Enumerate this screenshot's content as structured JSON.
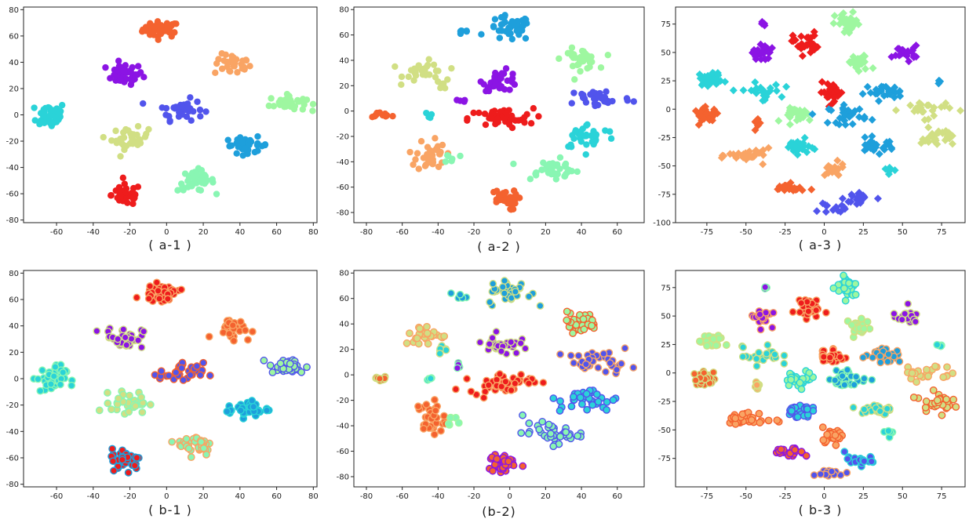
{
  "chart_data": [
    {
      "id": "a-1",
      "caption": "( a-1 )",
      "type": "scatter",
      "xlim": [
        -78,
        82
      ],
      "ylim": [
        -82,
        82
      ],
      "xticks": [
        -60,
        -40,
        -20,
        0,
        20,
        40,
        60,
        80
      ],
      "yticks": [
        -80,
        -60,
        -40,
        -20,
        0,
        20,
        40,
        60,
        80
      ],
      "marker": "circle",
      "style": "solid",
      "clusters": [
        {
          "x": -3,
          "y": 65,
          "sx": 5,
          "sy": 3,
          "color": "#f4622f",
          "n": 45
        },
        {
          "x": -23,
          "y": 31,
          "sx": 5,
          "sy": 4,
          "color": "#8b14e4",
          "n": 40
        },
        {
          "x": 36,
          "y": 38,
          "sx": 5,
          "sy": 4,
          "color": "#f9a464",
          "n": 30
        },
        {
          "x": -63,
          "y": 0,
          "sx": 4,
          "sy": 5,
          "color": "#2ad3d8",
          "n": 45
        },
        {
          "x": 8,
          "y": 4,
          "sx": 6,
          "sy": 4,
          "color": "#5154ec",
          "n": 35
        },
        {
          "x": 66,
          "y": 9,
          "sx": 5,
          "sy": 3,
          "color": "#9ef7a0",
          "n": 40
        },
        {
          "x": -20,
          "y": -18,
          "sx": 5,
          "sy": 4,
          "color": "#d1df84",
          "n": 35
        },
        {
          "x": 44,
          "y": -23,
          "sx": 6,
          "sy": 3,
          "color": "#1e9fdb",
          "n": 35
        },
        {
          "x": 16,
          "y": -50,
          "sx": 5,
          "sy": 4,
          "color": "#89f6b3",
          "n": 40
        },
        {
          "x": -22,
          "y": -61,
          "sx": 4,
          "sy": 4,
          "color": "#ee1c1c",
          "n": 45
        }
      ]
    },
    {
      "id": "a-2",
      "caption": "( a-2 )",
      "type": "scatter",
      "xlim": [
        -87,
        75
      ],
      "ylim": [
        -88,
        82
      ],
      "xticks": [
        -80,
        -60,
        -40,
        -20,
        0,
        20,
        40,
        60
      ],
      "yticks": [
        -80,
        -60,
        -40,
        -20,
        0,
        20,
        40,
        60,
        80
      ],
      "marker": "circle",
      "style": "solid",
      "clusters": [
        {
          "x": 0,
          "y": 65,
          "sx": 6,
          "sy": 5,
          "color": "#1e9fdb",
          "n": 40
        },
        {
          "x": -26,
          "y": 62,
          "sx": 2,
          "sy": 1,
          "color": "#1e9fdb",
          "n": 6
        },
        {
          "x": -47,
          "y": 31,
          "sx": 6,
          "sy": 4,
          "color": "#d1df84",
          "n": 30
        },
        {
          "x": -37,
          "y": 21,
          "sx": 2,
          "sy": 2,
          "color": "#d1df84",
          "n": 6
        },
        {
          "x": -5,
          "y": 24,
          "sx": 5,
          "sy": 4,
          "color": "#8b14e4",
          "n": 35
        },
        {
          "x": -28,
          "y": 8,
          "sx": 2,
          "sy": 1,
          "color": "#8b14e4",
          "n": 4
        },
        {
          "x": 39,
          "y": 41,
          "sx": 5,
          "sy": 4,
          "color": "#9ef7a0",
          "n": 35
        },
        {
          "x": -72,
          "y": -3,
          "sx": 4,
          "sy": 1,
          "color": "#f4622f",
          "n": 12
        },
        {
          "x": -45,
          "y": -3,
          "sx": 1,
          "sy": 1,
          "color": "#2ad3d8",
          "n": 4
        },
        {
          "x": -5,
          "y": -6,
          "sx": 9,
          "sy": 4,
          "color": "#ee1c1c",
          "n": 45
        },
        {
          "x": 50,
          "y": 10,
          "sx": 9,
          "sy": 4,
          "color": "#5154ec",
          "n": 35
        },
        {
          "x": 44,
          "y": -20,
          "sx": 8,
          "sy": 5,
          "color": "#2ad3d8",
          "n": 35
        },
        {
          "x": -44,
          "y": -34,
          "sx": 4,
          "sy": 7,
          "color": "#f9a464",
          "n": 35
        },
        {
          "x": -32,
          "y": -37,
          "sx": 2,
          "sy": 2,
          "color": "#89f6b3",
          "n": 6
        },
        {
          "x": 23,
          "y": -46,
          "sx": 8,
          "sy": 4,
          "color": "#89f6b3",
          "n": 40
        },
        {
          "x": -4,
          "y": -70,
          "sx": 4,
          "sy": 4,
          "color": "#f4622f",
          "n": 30
        }
      ]
    },
    {
      "id": "a-3",
      "caption": "( a-3 )",
      "type": "scatter",
      "xlim": [
        -95,
        90
      ],
      "ylim": [
        -100,
        90
      ],
      "xticks": [
        -75,
        -50,
        -25,
        0,
        25,
        50,
        75
      ],
      "yticks": [
        -100,
        -75,
        -50,
        -25,
        0,
        25,
        50,
        75
      ],
      "marker": "diamond",
      "style": "solid",
      "clusters": [
        {
          "x": -38,
          "y": 75,
          "sx": 1,
          "sy": 1,
          "color": "#8b14e4",
          "n": 4
        },
        {
          "x": -40,
          "y": 50,
          "sx": 3,
          "sy": 4,
          "color": "#8b14e4",
          "n": 25
        },
        {
          "x": -12,
          "y": 58,
          "sx": 4,
          "sy": 5,
          "color": "#ee1c1c",
          "n": 30
        },
        {
          "x": 15,
          "y": 75,
          "sx": 4,
          "sy": 5,
          "color": "#9ef7a0",
          "n": 30
        },
        {
          "x": 22,
          "y": 40,
          "sx": 4,
          "sy": 4,
          "color": "#9ef7a0",
          "n": 25
        },
        {
          "x": 52,
          "y": 50,
          "sx": 4,
          "sy": 3,
          "color": "#8b14e4",
          "n": 25
        },
        {
          "x": -72,
          "y": 27,
          "sx": 4,
          "sy": 3,
          "color": "#2ad3d8",
          "n": 30
        },
        {
          "x": -40,
          "y": 15,
          "sx": 6,
          "sy": 4,
          "color": "#2ad3d8",
          "n": 25
        },
        {
          "x": 5,
          "y": 15,
          "sx": 4,
          "sy": 4,
          "color": "#ee1c1c",
          "n": 30
        },
        {
          "x": 38,
          "y": 15,
          "sx": 6,
          "sy": 3,
          "color": "#1e9fdb",
          "n": 30
        },
        {
          "x": 74,
          "y": 24,
          "sx": 1,
          "sy": 1,
          "color": "#1e9fdb",
          "n": 4
        },
        {
          "x": -15,
          "y": -5,
          "sx": 5,
          "sy": 3,
          "color": "#9ef7a0",
          "n": 30
        },
        {
          "x": 15,
          "y": -5,
          "sx": 6,
          "sy": 4,
          "color": "#1e9fdb",
          "n": 30
        },
        {
          "x": -75,
          "y": -5,
          "sx": 4,
          "sy": 3,
          "color": "#f4622f",
          "n": 30
        },
        {
          "x": -43,
          "y": -12,
          "sx": 1,
          "sy": 3,
          "color": "#f4622f",
          "n": 10
        },
        {
          "x": 65,
          "y": 0,
          "sx": 8,
          "sy": 4,
          "color": "#d1df84",
          "n": 25
        },
        {
          "x": 72,
          "y": -25,
          "sx": 5,
          "sy": 4,
          "color": "#d1df84",
          "n": 30
        },
        {
          "x": -17,
          "y": -33,
          "sx": 4,
          "sy": 3,
          "color": "#2ad3d8",
          "n": 30
        },
        {
          "x": 33,
          "y": -32,
          "sx": 6,
          "sy": 3,
          "color": "#1e9fdb",
          "n": 30
        },
        {
          "x": -47,
          "y": -41,
          "sx": 7,
          "sy": 3,
          "color": "#f9a464",
          "n": 30
        },
        {
          "x": 5,
          "y": -54,
          "sx": 4,
          "sy": 3,
          "color": "#f9a464",
          "n": 25
        },
        {
          "x": 42,
          "y": -53,
          "sx": 2,
          "sy": 2,
          "color": "#2ad3d8",
          "n": 6
        },
        {
          "x": -23,
          "y": -70,
          "sx": 5,
          "sy": 2,
          "color": "#f4622f",
          "n": 20
        },
        {
          "x": 23,
          "y": -78,
          "sx": 5,
          "sy": 4,
          "color": "#5154ec",
          "n": 20
        },
        {
          "x": 5,
          "y": -88,
          "sx": 4,
          "sy": 2,
          "color": "#5154ec",
          "n": 12
        }
      ]
    },
    {
      "id": "b-1",
      "caption": "( b-1 )",
      "type": "scatter",
      "xlim": [
        -78,
        82
      ],
      "ylim": [
        -82,
        82
      ],
      "xticks": [
        -60,
        -40,
        -20,
        0,
        20,
        40,
        60,
        80
      ],
      "yticks": [
        -80,
        -60,
        -40,
        -20,
        0,
        20,
        40,
        60,
        80
      ],
      "marker": "circle",
      "style": "ring-overlay",
      "clusters": [
        {
          "x": -3,
          "y": 65,
          "sx": 5,
          "sy": 3,
          "color": "#ee1c1c",
          "ring": "#f9a464",
          "n": 45
        },
        {
          "x": -23,
          "y": 31,
          "sx": 5,
          "sy": 4,
          "color": "#8b14e4",
          "ring": "#d1df84",
          "n": 40
        },
        {
          "x": 36,
          "y": 38,
          "sx": 5,
          "sy": 4,
          "color": "#f4622f",
          "ring": "#f9a464",
          "n": 30
        },
        {
          "x": -63,
          "y": 0,
          "sx": 4,
          "sy": 5,
          "color": "#2ad3d8",
          "ring": "#89f6b3",
          "n": 45
        },
        {
          "x": 8,
          "y": 4,
          "sx": 6,
          "sy": 4,
          "color": "#5154ec",
          "ring": "#f4622f",
          "n": 35
        },
        {
          "x": 66,
          "y": 9,
          "sx": 5,
          "sy": 3,
          "color": "#9ef7a0",
          "ring": "#5154ec",
          "n": 40
        },
        {
          "x": -20,
          "y": -18,
          "sx": 5,
          "sy": 4,
          "color": "#d1df84",
          "ring": "#89f6b3",
          "n": 35
        },
        {
          "x": 44,
          "y": -23,
          "sx": 6,
          "sy": 3,
          "color": "#1e9fdb",
          "ring": "#2ad3d8",
          "n": 35
        },
        {
          "x": 16,
          "y": -50,
          "sx": 5,
          "sy": 4,
          "color": "#89f6b3",
          "ring": "#f9a464",
          "n": 40
        },
        {
          "x": -22,
          "y": -61,
          "sx": 4,
          "sy": 4,
          "color": "#ee1c1c",
          "ring": "#1e9fdb",
          "n": 45
        }
      ]
    },
    {
      "id": "b-2",
      "caption": "(b-2)",
      "type": "scatter",
      "xlim": [
        -87,
        75
      ],
      "ylim": [
        -88,
        82
      ],
      "xticks": [
        -80,
        -60,
        -40,
        -20,
        0,
        20,
        40,
        60
      ],
      "yticks": [
        -80,
        -60,
        -40,
        -20,
        0,
        20,
        40,
        60,
        80
      ],
      "marker": "circle",
      "style": "ring-overlay",
      "clusters": [
        {
          "x": 0,
          "y": 65,
          "sx": 6,
          "sy": 5,
          "color": "#1e9fdb",
          "ring": "#d1df84",
          "n": 40
        },
        {
          "x": -26,
          "y": 62,
          "sx": 2,
          "sy": 1,
          "color": "#1e9fdb",
          "ring": "#89f6b3",
          "n": 6
        },
        {
          "x": -47,
          "y": 31,
          "sx": 6,
          "sy": 4,
          "color": "#d1df84",
          "ring": "#f9a464",
          "n": 30
        },
        {
          "x": -37,
          "y": 21,
          "sx": 2,
          "sy": 2,
          "color": "#2ad3d8",
          "ring": "#d1df84",
          "n": 6
        },
        {
          "x": -5,
          "y": 24,
          "sx": 5,
          "sy": 4,
          "color": "#8b14e4",
          "ring": "#d1df84",
          "n": 35
        },
        {
          "x": -28,
          "y": 8,
          "sx": 2,
          "sy": 1,
          "color": "#8b14e4",
          "ring": "#89f6b3",
          "n": 4
        },
        {
          "x": 39,
          "y": 41,
          "sx": 5,
          "sy": 4,
          "color": "#9ef7a0",
          "ring": "#f4622f",
          "n": 35
        },
        {
          "x": -72,
          "y": -3,
          "sx": 4,
          "sy": 1,
          "color": "#f4622f",
          "ring": "#d1df84",
          "n": 12
        },
        {
          "x": -45,
          "y": -3,
          "sx": 1,
          "sy": 1,
          "color": "#2ad3d8",
          "ring": "#89f6b3",
          "n": 4
        },
        {
          "x": -5,
          "y": -6,
          "sx": 9,
          "sy": 4,
          "color": "#ee1c1c",
          "ring": "#f9a464",
          "n": 45
        },
        {
          "x": 50,
          "y": 10,
          "sx": 9,
          "sy": 4,
          "color": "#5154ec",
          "ring": "#f9a464",
          "n": 35
        },
        {
          "x": 44,
          "y": -20,
          "sx": 8,
          "sy": 5,
          "color": "#2ad3d8",
          "ring": "#5154ec",
          "n": 35
        },
        {
          "x": -44,
          "y": -34,
          "sx": 4,
          "sy": 7,
          "color": "#f4622f",
          "ring": "#f9a464",
          "n": 35
        },
        {
          "x": -32,
          "y": -37,
          "sx": 2,
          "sy": 2,
          "color": "#89f6b3",
          "ring": "#9ef7a0",
          "n": 6
        },
        {
          "x": 23,
          "y": -46,
          "sx": 8,
          "sy": 4,
          "color": "#89f6b3",
          "ring": "#5154ec",
          "n": 40
        },
        {
          "x": -4,
          "y": -70,
          "sx": 4,
          "sy": 4,
          "color": "#f4622f",
          "ring": "#8b14e4",
          "n": 30
        }
      ]
    },
    {
      "id": "b-3",
      "caption": "( b-3 )",
      "type": "scatter",
      "xlim": [
        -95,
        90
      ],
      "ylim": [
        -100,
        90
      ],
      "xticks": [
        -75,
        -50,
        -25,
        0,
        25,
        50,
        75
      ],
      "yticks": [
        -75,
        -50,
        -25,
        0,
        25,
        50,
        75
      ],
      "marker": "circle",
      "style": "ring-overlay",
      "clusters": [
        {
          "x": -38,
          "y": 75,
          "sx": 1,
          "sy": 1,
          "color": "#8b14e4",
          "ring": "#89f6b3",
          "n": 4
        },
        {
          "x": -40,
          "y": 50,
          "sx": 3,
          "sy": 4,
          "color": "#8b14e4",
          "ring": "#f9a464",
          "n": 25
        },
        {
          "x": -12,
          "y": 58,
          "sx": 4,
          "sy": 5,
          "color": "#ee1c1c",
          "ring": "#f9a464",
          "n": 30
        },
        {
          "x": 15,
          "y": 75,
          "sx": 4,
          "sy": 5,
          "color": "#9ef7a0",
          "ring": "#2ad3d8",
          "n": 30
        },
        {
          "x": 22,
          "y": 40,
          "sx": 4,
          "sy": 4,
          "color": "#9ef7a0",
          "ring": "#d1df84",
          "n": 25
        },
        {
          "x": 52,
          "y": 50,
          "sx": 4,
          "sy": 3,
          "color": "#8b14e4",
          "ring": "#d1df84",
          "n": 25
        },
        {
          "x": -72,
          "y": 27,
          "sx": 4,
          "sy": 3,
          "color": "#9ef7a0",
          "ring": "#d1df84",
          "n": 30
        },
        {
          "x": -40,
          "y": 15,
          "sx": 6,
          "sy": 4,
          "color": "#2ad3d8",
          "ring": "#d1df84",
          "n": 25
        },
        {
          "x": 5,
          "y": 15,
          "sx": 4,
          "sy": 4,
          "color": "#ee1c1c",
          "ring": "#f9a464",
          "n": 30
        },
        {
          "x": 38,
          "y": 15,
          "sx": 6,
          "sy": 3,
          "color": "#1e9fdb",
          "ring": "#f9a464",
          "n": 30
        },
        {
          "x": 74,
          "y": 24,
          "sx": 1,
          "sy": 1,
          "color": "#2ad3d8",
          "ring": "#89f6b3",
          "n": 4
        },
        {
          "x": -15,
          "y": -5,
          "sx": 5,
          "sy": 3,
          "color": "#9ef7a0",
          "ring": "#2ad3d8",
          "n": 30
        },
        {
          "x": 15,
          "y": -5,
          "sx": 6,
          "sy": 4,
          "color": "#1e9fdb",
          "ring": "#89f6b3",
          "n": 30
        },
        {
          "x": -75,
          "y": -5,
          "sx": 4,
          "sy": 3,
          "color": "#f4622f",
          "ring": "#d1df84",
          "n": 30
        },
        {
          "x": -43,
          "y": -12,
          "sx": 1,
          "sy": 3,
          "color": "#f9a464",
          "ring": "#d1df84",
          "n": 10
        },
        {
          "x": 65,
          "y": 0,
          "sx": 8,
          "sy": 4,
          "color": "#d1df84",
          "ring": "#f9a464",
          "n": 25
        },
        {
          "x": 72,
          "y": -25,
          "sx": 5,
          "sy": 4,
          "color": "#d1df84",
          "ring": "#f4622f",
          "n": 30
        },
        {
          "x": -17,
          "y": -33,
          "sx": 4,
          "sy": 3,
          "color": "#2ad3d8",
          "ring": "#5154ec",
          "n": 30
        },
        {
          "x": 33,
          "y": -32,
          "sx": 6,
          "sy": 3,
          "color": "#2ad3d8",
          "ring": "#d1df84",
          "n": 30
        },
        {
          "x": -47,
          "y": -41,
          "sx": 7,
          "sy": 3,
          "color": "#f9a464",
          "ring": "#f4622f",
          "n": 30
        },
        {
          "x": 5,
          "y": -54,
          "sx": 4,
          "sy": 3,
          "color": "#f9a464",
          "ring": "#f4622f",
          "n": 25
        },
        {
          "x": 42,
          "y": -53,
          "sx": 2,
          "sy": 2,
          "color": "#2ad3d8",
          "ring": "#89f6b3",
          "n": 6
        },
        {
          "x": -23,
          "y": -70,
          "sx": 5,
          "sy": 2,
          "color": "#f4622f",
          "ring": "#8b14e4",
          "n": 20
        },
        {
          "x": 23,
          "y": -78,
          "sx": 5,
          "sy": 4,
          "color": "#5154ec",
          "ring": "#2ad3d8",
          "n": 20
        },
        {
          "x": 5,
          "y": -88,
          "sx": 4,
          "sy": 2,
          "color": "#5154ec",
          "ring": "#f9a464",
          "n": 12
        }
      ]
    }
  ]
}
